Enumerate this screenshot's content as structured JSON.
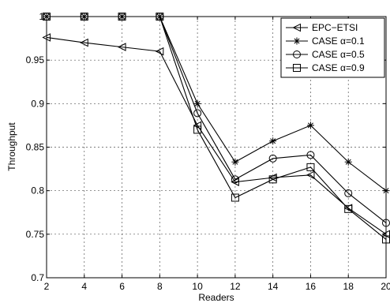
{
  "chart_data": {
    "type": "line",
    "title": "",
    "xlabel": "Readers",
    "ylabel": "Throughput",
    "x": [
      2,
      4,
      6,
      8,
      10,
      12,
      14,
      16,
      18,
      20
    ],
    "xlim": [
      2,
      20
    ],
    "ylim": [
      0.7,
      1.0
    ],
    "xticks": [
      "2",
      "4",
      "6",
      "8",
      "10",
      "12",
      "14",
      "16",
      "18",
      "20"
    ],
    "yticks": [
      "0.7",
      "0.75",
      "0.8",
      "0.85",
      "0.9",
      "0.95",
      "1"
    ],
    "ytick_values": [
      0.7,
      0.75,
      0.8,
      0.85,
      0.9,
      0.95,
      1.0
    ],
    "grid": true,
    "legend_position": "top-right",
    "series": [
      {
        "name": "EPC−ETSI",
        "marker": "triangle-left",
        "values": [
          0.976,
          0.97,
          0.965,
          0.96,
          0.875,
          0.81,
          0.815,
          0.818,
          0.78,
          0.75
        ]
      },
      {
        "name": "CASE α=0.1",
        "marker": "star",
        "values": [
          1.0,
          1.0,
          1.0,
          1.0,
          0.9,
          0.833,
          0.857,
          0.875,
          0.833,
          0.8
        ]
      },
      {
        "name": "CASE α=0.5",
        "marker": "circle",
        "values": [
          1.0,
          1.0,
          1.0,
          1.0,
          0.889,
          0.813,
          0.837,
          0.841,
          0.797,
          0.763
        ]
      },
      {
        "name": "CASE α=0.9",
        "marker": "square",
        "values": [
          1.0,
          1.0,
          1.0,
          1.0,
          0.87,
          0.792,
          0.813,
          0.827,
          0.779,
          0.744
        ]
      }
    ]
  }
}
